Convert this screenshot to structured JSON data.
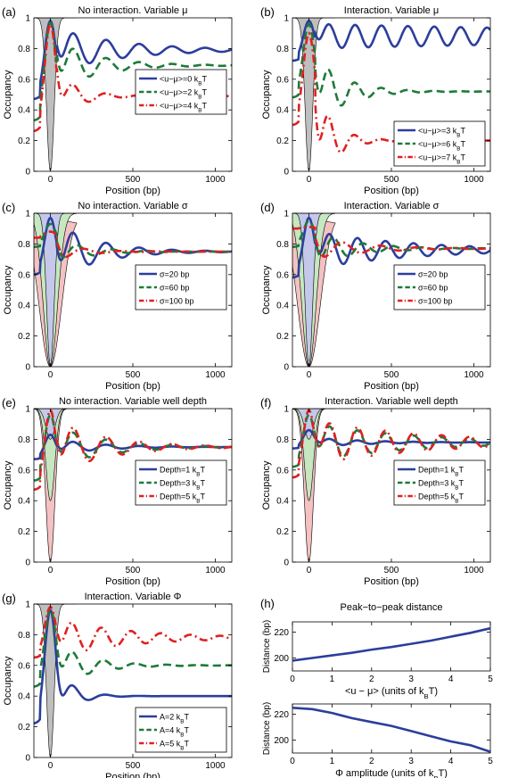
{
  "figure": {
    "colors": {
      "blue": "#2c3e9c",
      "green": "#1f7a3a",
      "red": "#e02020",
      "gray": "#bfbfbf",
      "green_fill": "#c6e7c0",
      "red_fill": "#f4c2c2",
      "blue_fill": "#c5c8ea"
    }
  },
  "chart_data": [
    {
      "panel": "(a)",
      "type": "line",
      "title": "No interaction. Variable μ",
      "xlabel": "Position (bp)",
      "ylabel": "Occupancy",
      "xlim": [
        -100,
        1100
      ],
      "ylim": [
        0,
        1
      ],
      "xticks": [
        "0",
        "500",
        "1000"
      ],
      "yticks": [
        "0",
        "0.2",
        "0.4",
        "0.6",
        "0.8",
        "1"
      ],
      "legend": "center-right",
      "fills": [
        {
          "color": "gray",
          "depth": 1,
          "width": 50
        }
      ],
      "series": [
        {
          "name": "<u−μ>=0 k_BT",
          "color": "blue",
          "dash": "",
          "start": 0.47,
          "plateau": 0.79,
          "amp": 0.14,
          "decay": 400,
          "period": 200,
          "phase": 40,
          "core": 0.98
        },
        {
          "name": "<u−μ>=2 k_BT",
          "color": "green",
          "dash": "9,5",
          "start": 0.33,
          "plateau": 0.69,
          "amp": 0.16,
          "decay": 250,
          "period": 200,
          "phase": 40,
          "core": 0.97
        },
        {
          "name": "<u−μ>=4 k_BT",
          "color": "red",
          "dash": "9,4,2,4",
          "start": 0.26,
          "plateau": 0.49,
          "amp": 0.15,
          "decay": 140,
          "period": 200,
          "phase": 40,
          "core": 0.96
        }
      ]
    },
    {
      "panel": "(b)",
      "type": "line",
      "title": "Interaction. Variable μ",
      "xlabel": "Position (bp)",
      "ylabel": "Occupancy",
      "xlim": [
        -100,
        1100
      ],
      "ylim": [
        0,
        1
      ],
      "xticks": [
        "0",
        "500",
        "1000"
      ],
      "yticks": [
        "0",
        "0.2",
        "0.4",
        "0.6",
        "0.8",
        "1"
      ],
      "legend": "lower-right",
      "fills": [
        {
          "color": "gray",
          "depth": 1,
          "width": 50
        }
      ],
      "series": [
        {
          "name": "<u−μ>=3 k_BT",
          "color": "blue",
          "dash": "",
          "start": 0.72,
          "plateau": 0.88,
          "amp": 0.08,
          "decay": 3000,
          "period": 160,
          "phase": 40,
          "core": 0.98
        },
        {
          "name": "<u−μ>=6 k_BT",
          "color": "green",
          "dash": "9,5",
          "start": 0.48,
          "plateau": 0.52,
          "amp": 0.22,
          "decay": 180,
          "period": 160,
          "phase": 40,
          "core": 0.96
        },
        {
          "name": "<u−μ>=7 k_BT",
          "color": "red",
          "dash": "9,4,2,4",
          "start": 0.3,
          "plateau": 0.2,
          "amp": 0.32,
          "decay": 110,
          "period": 160,
          "phase": 40,
          "core": 0.9
        }
      ]
    },
    {
      "panel": "(c)",
      "type": "line",
      "title": "No interaction. Variable σ",
      "xlabel": "Position (bp)",
      "ylabel": "Occupancy",
      "xlim": [
        -100,
        1100
      ],
      "ylim": [
        0,
        1
      ],
      "xticks": [
        "0",
        "500",
        "1000"
      ],
      "yticks": [
        "0",
        "0.2",
        "0.4",
        "0.6",
        "0.8",
        "1"
      ],
      "legend": "center-right",
      "fills": [
        {
          "color": "red_fill",
          "depth": 1,
          "width": 150
        },
        {
          "color": "green_fill",
          "depth": 1,
          "width": 95
        },
        {
          "color": "blue_fill",
          "depth": 1,
          "width": 50
        }
      ],
      "series": [
        {
          "name": "σ=20 bp",
          "color": "blue",
          "dash": "",
          "start": 0.6,
          "plateau": 0.75,
          "amp": 0.18,
          "decay": 260,
          "period": 200,
          "phase": 40,
          "core": 0.97
        },
        {
          "name": "σ=60 bp",
          "color": "green",
          "dash": "9,5",
          "start": 0.78,
          "plateau": 0.75,
          "amp": 0.07,
          "decay": 200,
          "period": 210,
          "phase": 60,
          "core": 0.93
        },
        {
          "name": "σ=100 bp",
          "color": "red",
          "dash": "9,4,2,4",
          "start": 0.84,
          "plateau": 0.75,
          "amp": 0.04,
          "decay": 150,
          "period": 230,
          "phase": 90,
          "core": 0.88
        }
      ]
    },
    {
      "panel": "(d)",
      "type": "line",
      "title": "Interaction. Variable σ",
      "xlabel": "Position (bp)",
      "ylabel": "Occupancy",
      "xlim": [
        -100,
        1100
      ],
      "ylim": [
        0,
        1
      ],
      "xticks": [
        "0",
        "500",
        "1000"
      ],
      "yticks": [
        "0",
        "0.2",
        "0.4",
        "0.6",
        "0.8",
        "1"
      ],
      "legend": "center-right",
      "fills": [
        {
          "color": "red_fill",
          "depth": 1,
          "width": 150
        },
        {
          "color": "green_fill",
          "depth": 1,
          "width": 95
        },
        {
          "color": "blue_fill",
          "depth": 1,
          "width": 50
        }
      ],
      "series": [
        {
          "name": "σ=20 bp",
          "color": "blue",
          "dash": "",
          "start": 0.58,
          "plateau": 0.76,
          "amp": 0.12,
          "decay": 600,
          "period": 170,
          "phase": 40,
          "core": 0.97
        },
        {
          "name": "σ=60 bp",
          "color": "green",
          "dash": "9,5",
          "start": 0.78,
          "plateau": 0.77,
          "amp": 0.1,
          "decay": 250,
          "period": 180,
          "phase": 60,
          "core": 0.95
        },
        {
          "name": "σ=100 bp",
          "color": "red",
          "dash": "9,4,2,4",
          "start": 0.9,
          "plateau": 0.77,
          "amp": 0.06,
          "decay": 300,
          "period": 230,
          "phase": 90,
          "core": 0.91
        }
      ]
    },
    {
      "panel": "(e)",
      "type": "line",
      "title": "No interaction. Variable well depth",
      "xlabel": "Position (bp)",
      "ylabel": "Occupancy",
      "xlim": [
        -100,
        1100
      ],
      "ylim": [
        0,
        1
      ],
      "xticks": [
        "0",
        "500",
        "1000"
      ],
      "yticks": [
        "0",
        "0.2",
        "0.4",
        "0.6",
        "0.8",
        "1"
      ],
      "legend": "center-right",
      "fills": [
        {
          "color": "red_fill",
          "depth": 1,
          "width": 60
        },
        {
          "color": "green_fill",
          "depth": 0.6,
          "width": 60
        },
        {
          "color": "blue_fill",
          "depth": 0.2,
          "width": 60
        }
      ],
      "series": [
        {
          "name": "Depth=1 k_BT",
          "color": "blue",
          "dash": "",
          "start": 0.67,
          "plateau": 0.75,
          "amp": 0.05,
          "decay": 250,
          "period": 200,
          "phase": 40,
          "core": 0.83
        },
        {
          "name": "Depth=3 k_BT",
          "color": "green",
          "dash": "9,5",
          "start": 0.53,
          "plateau": 0.75,
          "amp": 0.13,
          "decay": 300,
          "period": 200,
          "phase": 40,
          "core": 0.96
        },
        {
          "name": "Depth=5 k_BT",
          "color": "red",
          "dash": "9,4,2,4",
          "start": 0.47,
          "plateau": 0.75,
          "amp": 0.17,
          "decay": 320,
          "period": 200,
          "phase": 40,
          "core": 0.99
        }
      ]
    },
    {
      "panel": "(f)",
      "type": "line",
      "title": "Interaction. Variable well depth",
      "xlabel": "Position (bp)",
      "ylabel": "Occupancy",
      "xlim": [
        -100,
        1100
      ],
      "ylim": [
        0,
        1
      ],
      "xticks": [
        "0",
        "500",
        "1000"
      ],
      "yticks": [
        "0",
        "0.2",
        "0.4",
        "0.6",
        "0.8",
        "1"
      ],
      "legend": "center-right",
      "fills": [
        {
          "color": "red_fill",
          "depth": 1,
          "width": 60
        },
        {
          "color": "green_fill",
          "depth": 0.6,
          "width": 60
        },
        {
          "color": "blue_fill",
          "depth": 0.2,
          "width": 60
        }
      ],
      "series": [
        {
          "name": "Depth=1 k_BT",
          "color": "blue",
          "dash": "",
          "start": 0.74,
          "plateau": 0.78,
          "amp": 0.03,
          "decay": 300,
          "period": 170,
          "phase": 40,
          "core": 0.86
        },
        {
          "name": "Depth=3 k_BT",
          "color": "green",
          "dash": "9,5",
          "start": 0.62,
          "plateau": 0.78,
          "amp": 0.12,
          "decay": 600,
          "period": 170,
          "phase": 40,
          "core": 0.96
        },
        {
          "name": "Depth=5 k_BT",
          "color": "red",
          "dash": "9,4,2,4",
          "start": 0.55,
          "plateau": 0.78,
          "amp": 0.14,
          "decay": 700,
          "period": 170,
          "phase": 40,
          "core": 0.99
        }
      ]
    },
    {
      "panel": "(g)",
      "type": "line",
      "title": "Interaction. Variable Φ",
      "xlabel": "Position (bp)",
      "ylabel": "Occupancy",
      "xlim": [
        -100,
        1100
      ],
      "ylim": [
        0,
        1
      ],
      "xticks": [
        "0",
        "500",
        "1000"
      ],
      "yticks": [
        "0",
        "0.2",
        "0.4",
        "0.6",
        "0.8",
        "1"
      ],
      "legend": "lower-right",
      "fills": [
        {
          "color": "gray",
          "depth": 1,
          "width": 50
        }
      ],
      "series": [
        {
          "name": "A=2 k_BT",
          "color": "blue",
          "dash": "",
          "start": 0.22,
          "plateau": 0.4,
          "amp": 0.18,
          "decay": 100,
          "period": 200,
          "phase": 40,
          "core": 0.96
        },
        {
          "name": "A=4 k_BT",
          "color": "green",
          "dash": "9,5",
          "start": 0.46,
          "plateau": 0.6,
          "amp": 0.14,
          "decay": 200,
          "period": 190,
          "phase": 40,
          "core": 0.97
        },
        {
          "name": "A=5 k_BT",
          "color": "red",
          "dash": "9,4,2,4",
          "start": 0.65,
          "plateau": 0.78,
          "amp": 0.12,
          "decay": 450,
          "period": 180,
          "phase": 40,
          "core": 0.98
        }
      ]
    },
    {
      "panel": "(h)",
      "type": "line",
      "title": "Peak−to−peak distance",
      "subplots": [
        {
          "xlabel": "<u − μ> (units of k_BT)",
          "ylabel": "Distance (bp)",
          "xlim": [
            0,
            5
          ],
          "ylim": [
            190,
            228
          ],
          "xticks": [
            "0",
            "1",
            "2",
            "3",
            "4",
            "5"
          ],
          "yticks": [
            "200",
            "220"
          ],
          "x": [
            0,
            0.5,
            1,
            1.5,
            2,
            2.5,
            3,
            3.5,
            4,
            4.5,
            5
          ],
          "y": [
            198,
            200,
            202,
            204,
            206.5,
            208.5,
            211,
            213.5,
            216.5,
            219.5,
            223
          ],
          "color": "blue"
        },
        {
          "xlabel": "Φ amplitude (units of k_BT)",
          "ylabel": "Distance (bp)",
          "xlim": [
            0,
            5
          ],
          "ylim": [
            190,
            228
          ],
          "xticks": [
            "0",
            "1",
            "2",
            "3",
            "4",
            "5"
          ],
          "yticks": [
            "200",
            "220"
          ],
          "x": [
            0,
            0.5,
            1,
            1.5,
            2,
            2.5,
            3,
            3.5,
            4,
            4.5,
            5
          ],
          "y": [
            225,
            224,
            221,
            217,
            214,
            211,
            207,
            203,
            199,
            196,
            191
          ],
          "color": "blue"
        }
      ]
    }
  ]
}
